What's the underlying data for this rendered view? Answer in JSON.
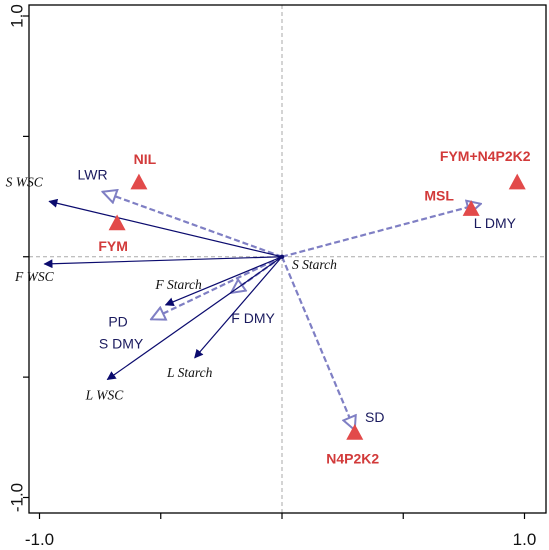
{
  "colors": {
    "response_arrow": "#0b0b6e",
    "explanatory_arrow": "#7f7fc4",
    "treatment": "#e24a4a",
    "treatment_label": "#d23a3a",
    "zero_line": "#aaaaaa"
  },
  "chart_data": {
    "type": "scatter",
    "title": "",
    "xlabel": "",
    "ylabel": "",
    "xlim": [
      -1.05,
      1.05
    ],
    "ylim": [
      -1.05,
      1.05
    ],
    "x_ticks": [
      -1.0,
      -0.5,
      0.0,
      0.5,
      1.0
    ],
    "y_ticks": [
      -1.0,
      -0.5,
      0.0,
      0.5,
      1.0
    ],
    "x_tick_labels": [
      "-1.0",
      "1.0"
    ],
    "y_tick_labels": [
      "-1.0",
      "1.0"
    ],
    "zero_lines": true,
    "response_variables": [
      {
        "name": "S WSC",
        "x": -0.96,
        "y": 0.23
      },
      {
        "name": "F WSC",
        "x": -0.98,
        "y": -0.03
      },
      {
        "name": "F Starch",
        "x": -0.48,
        "y": -0.2
      },
      {
        "name": "L Starch",
        "x": -0.36,
        "y": -0.42
      },
      {
        "name": "L WSC",
        "x": -0.72,
        "y": -0.51
      },
      {
        "name": "S Starch",
        "x": 0.0,
        "y": 0.0
      }
    ],
    "explanatory_variables": [
      {
        "name": "LWR",
        "x": -0.74,
        "y": 0.27
      },
      {
        "name": "L DMY",
        "x": 0.82,
        "y": 0.22
      },
      {
        "name": "F DMY",
        "x": -0.21,
        "y": -0.15
      },
      {
        "name": "PD",
        "x": -0.54,
        "y": -0.26
      },
      {
        "name": "S DMY",
        "x": -0.54,
        "y": -0.26
      },
      {
        "name": "SD",
        "x": 0.3,
        "y": -0.72
      }
    ],
    "treatments": [
      {
        "name": "NIL",
        "x": -0.59,
        "y": 0.31
      },
      {
        "name": "FYM",
        "x": -0.68,
        "y": 0.14
      },
      {
        "name": "FYM+N4P2K2",
        "x": 0.97,
        "y": 0.31
      },
      {
        "name": "MSL",
        "x": 0.78,
        "y": 0.2
      },
      {
        "name": "N4P2K2",
        "x": 0.3,
        "y": -0.73
      }
    ]
  }
}
